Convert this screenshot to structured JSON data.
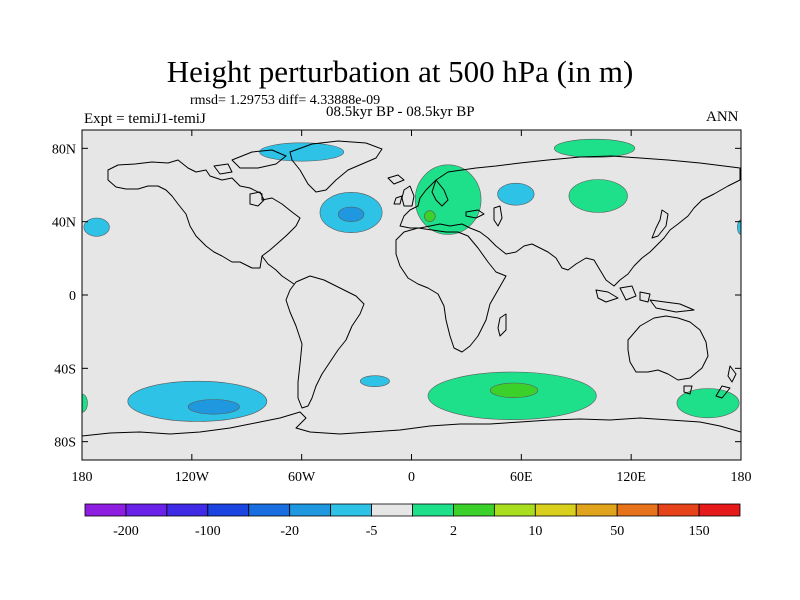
{
  "header": {
    "title": "Height perturbation at 500 hPa (in m)",
    "stats": "rmsd= 1.29753 diff= 4.33888e-09",
    "experiment": "Expt = temiJ1-temiJ",
    "period": "08.5kyr BP - 08.5kyr BP",
    "season": "ANN"
  },
  "map": {
    "projection": "cylindrical-equidistant",
    "lon_range": [
      -180,
      180
    ],
    "lat_range": [
      -90,
      90
    ],
    "background_color": "#e6e6e6",
    "lon_ticks": [
      {
        "value": -180,
        "label": "180"
      },
      {
        "value": -120,
        "label": "120W"
      },
      {
        "value": -60,
        "label": "60W"
      },
      {
        "value": 0,
        "label": "0"
      },
      {
        "value": 60,
        "label": "60E"
      },
      {
        "value": 120,
        "label": "120E"
      },
      {
        "value": 180,
        "label": "180"
      }
    ],
    "lat_ticks": [
      {
        "value": 80,
        "label": "80N"
      },
      {
        "value": 40,
        "label": "40N"
      },
      {
        "value": 0,
        "label": "0"
      },
      {
        "value": -40,
        "label": "40S"
      },
      {
        "value": -80,
        "label": "80S"
      }
    ]
  },
  "colorbar": {
    "colors": [
      "#8f1fe0",
      "#6a22e8",
      "#3f2ae6",
      "#1c44e0",
      "#1a6fe0",
      "#1f98e0",
      "#2ec2e6",
      "#e6e6e6",
      "#1ee08a",
      "#3cd12a",
      "#a8de1e",
      "#d8d01c",
      "#e0a41c",
      "#e6731a",
      "#e6431a",
      "#e61a1a"
    ],
    "labels": [
      {
        "after_box": 1,
        "text": "-200"
      },
      {
        "after_box": 3,
        "text": "-100"
      },
      {
        "after_box": 5,
        "text": "-20"
      },
      {
        "after_box": 7,
        "text": "-5"
      },
      {
        "after_box": 9,
        "text": "2"
      },
      {
        "after_box": 11,
        "text": "10"
      },
      {
        "after_box": 13,
        "text": "50"
      },
      {
        "after_box": 15,
        "text": "150"
      }
    ]
  },
  "anomalies": [
    {
      "name": "north-atlantic-low",
      "lon": -33,
      "lat": 45,
      "rlon": 17,
      "rlat": 11,
      "level": "negative",
      "color": "#2ec2e6"
    },
    {
      "name": "north-atlantic-low-core",
      "lon": -33,
      "lat": 44,
      "rlon": 7,
      "rlat": 4,
      "level": "negative-strong",
      "color": "#1f98e0"
    },
    {
      "name": "greenland-low",
      "lon": -60,
      "lat": 78,
      "rlon": 23,
      "rlat": 5,
      "level": "negative",
      "color": "#2ec2e6"
    },
    {
      "name": "north-pacific-west-low",
      "lon": -172,
      "lat": 37,
      "rlon": 7,
      "rlat": 5,
      "level": "negative",
      "color": "#2ec2e6"
    },
    {
      "name": "central-asia-low",
      "lon": 57,
      "lat": 55,
      "rlon": 10,
      "rlat": 6,
      "level": "negative",
      "color": "#2ec2e6"
    },
    {
      "name": "east-pacific-edge-low",
      "lon": 180,
      "lat": 37,
      "rlon": 2,
      "rlat": 4,
      "level": "negative",
      "color": "#2ec2e6"
    },
    {
      "name": "south-pacific-low",
      "lon": -117,
      "lat": -58,
      "rlon": 38,
      "rlat": 11,
      "level": "negative",
      "color": "#2ec2e6"
    },
    {
      "name": "south-pacific-low-core",
      "lon": -108,
      "lat": -61,
      "rlon": 14,
      "rlat": 4,
      "level": "negative-strong",
      "color": "#1f98e0"
    },
    {
      "name": "south-atlantic-low",
      "lon": -20,
      "lat": -47,
      "rlon": 8,
      "rlat": 3,
      "level": "negative",
      "color": "#2ec2e6"
    },
    {
      "name": "europe-high",
      "lon": 20,
      "lat": 52,
      "rlon": 18,
      "rlat": 19,
      "level": "positive",
      "color": "#1ee08a"
    },
    {
      "name": "europe-high-core",
      "lon": 10,
      "lat": 43,
      "rlon": 3,
      "rlat": 3,
      "level": "positive-strong",
      "color": "#3cd12a"
    },
    {
      "name": "arctic-siberia-high",
      "lon": 100,
      "lat": 80,
      "rlon": 22,
      "rlat": 5,
      "level": "positive",
      "color": "#1ee08a"
    },
    {
      "name": "east-asia-high",
      "lon": 102,
      "lat": 54,
      "rlon": 16,
      "rlat": 9,
      "level": "positive",
      "color": "#1ee08a"
    },
    {
      "name": "southern-ocean-high",
      "lon": 55,
      "lat": -55,
      "rlon": 46,
      "rlat": 13,
      "level": "positive",
      "color": "#1ee08a"
    },
    {
      "name": "southern-ocean-high-core",
      "lon": 56,
      "lat": -52,
      "rlon": 13,
      "rlat": 4,
      "level": "positive-strong",
      "color": "#3cd12a"
    },
    {
      "name": "southwest-pacific-high",
      "lon": 162,
      "lat": -59,
      "rlon": 17,
      "rlat": 8,
      "level": "positive",
      "color": "#1ee08a"
    },
    {
      "name": "far-west-south-high",
      "lon": -180,
      "lat": -59,
      "rlon": 3,
      "rlat": 5,
      "level": "positive",
      "color": "#1ee08a"
    }
  ]
}
